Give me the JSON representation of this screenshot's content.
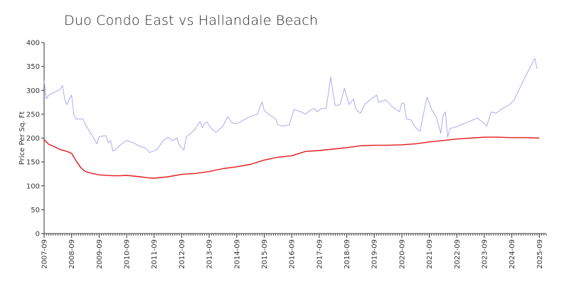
{
  "chart_data": {
    "type": "line",
    "title": "Duo Condo East vs Hallandale Beach",
    "xlabel": "",
    "ylabel": "Price Per Sq. Ft",
    "ylim": [
      0,
      400
    ],
    "yticks": [
      "0",
      "50",
      "100",
      "150",
      "200",
      "250",
      "300",
      "350",
      "400"
    ],
    "xticks": [
      "2007-09",
      "2008-09",
      "2009-09",
      "2010-09",
      "2011-09",
      "2012-09",
      "2013-09",
      "2014-09",
      "2015-09",
      "2016-09",
      "2017-09",
      "2018-09",
      "2019-09",
      "2020-09",
      "2021-09",
      "2022-09",
      "2023-09",
      "2024-09",
      "2025-09"
    ],
    "x_range": [
      "2007-09",
      "2025-12"
    ],
    "grid": false,
    "legend": "none",
    "series": [
      {
        "color": "#aaaaf2",
        "points": [
          [
            "2007-09",
            320
          ],
          [
            "2007-10",
            282
          ],
          [
            "2007-11",
            290
          ],
          [
            "2008-01",
            295
          ],
          [
            "2008-04",
            302
          ],
          [
            "2008-05",
            310
          ],
          [
            "2008-06",
            280
          ],
          [
            "2008-07",
            270
          ],
          [
            "2008-08",
            282
          ],
          [
            "2008-09",
            290
          ],
          [
            "2008-10",
            248
          ],
          [
            "2008-11",
            240
          ],
          [
            "2009-02",
            240
          ],
          [
            "2009-03",
            228
          ],
          [
            "2009-06",
            205
          ],
          [
            "2009-08",
            188
          ],
          [
            "2009-09",
            203
          ],
          [
            "2009-12",
            205
          ],
          [
            "2010-01",
            190
          ],
          [
            "2010-02",
            195
          ],
          [
            "2010-03",
            173
          ],
          [
            "2010-04",
            175
          ],
          [
            "2010-06",
            185
          ],
          [
            "2010-09",
            195
          ],
          [
            "2010-12",
            190
          ],
          [
            "2011-03",
            182
          ],
          [
            "2011-05",
            180
          ],
          [
            "2011-06",
            175
          ],
          [
            "2011-07",
            170
          ],
          [
            "2011-10",
            175
          ],
          [
            "2012-01",
            195
          ],
          [
            "2012-03",
            202
          ],
          [
            "2012-05",
            195
          ],
          [
            "2012-07",
            200
          ],
          [
            "2012-08",
            185
          ],
          [
            "2012-10",
            175
          ],
          [
            "2012-11",
            203
          ],
          [
            "2013-01",
            210
          ],
          [
            "2013-03",
            220
          ],
          [
            "2013-05",
            235
          ],
          [
            "2013-06",
            222
          ],
          [
            "2013-07",
            230
          ],
          [
            "2013-08",
            234
          ],
          [
            "2013-10",
            220
          ],
          [
            "2013-12",
            212
          ],
          [
            "2014-03",
            225
          ],
          [
            "2014-05",
            245
          ],
          [
            "2014-07",
            232
          ],
          [
            "2014-09",
            230
          ],
          [
            "2014-12",
            238
          ],
          [
            "2015-03",
            245
          ],
          [
            "2015-06",
            250
          ],
          [
            "2015-08",
            276
          ],
          [
            "2015-09",
            258
          ],
          [
            "2015-11",
            250
          ],
          [
            "2016-02",
            240
          ],
          [
            "2016-03",
            228
          ],
          [
            "2016-05",
            225
          ],
          [
            "2016-08",
            228
          ],
          [
            "2016-10",
            260
          ],
          [
            "2017-01",
            255
          ],
          [
            "2017-03",
            250
          ],
          [
            "2017-05",
            258
          ],
          [
            "2017-07",
            262
          ],
          [
            "2017-08",
            255
          ],
          [
            "2017-10",
            262
          ],
          [
            "2017-12",
            262
          ],
          [
            "2018-02",
            328
          ],
          [
            "2018-03",
            295
          ],
          [
            "2018-04",
            268
          ],
          [
            "2018-06",
            270
          ],
          [
            "2018-08",
            304
          ],
          [
            "2018-10",
            270
          ],
          [
            "2018-12",
            282
          ],
          [
            "2019-01",
            260
          ],
          [
            "2019-03",
            252
          ],
          [
            "2019-05",
            272
          ],
          [
            "2019-08",
            283
          ],
          [
            "2019-10",
            290
          ],
          [
            "2019-11",
            275
          ],
          [
            "2020-02",
            280
          ],
          [
            "2020-05",
            265
          ],
          [
            "2020-08",
            255
          ],
          [
            "2020-09",
            273
          ],
          [
            "2020-10",
            273
          ],
          [
            "2020-11",
            240
          ],
          [
            "2021-01",
            238
          ],
          [
            "2021-03",
            222
          ],
          [
            "2021-05",
            214
          ],
          [
            "2021-06",
            240
          ],
          [
            "2021-08",
            286
          ],
          [
            "2021-10",
            260
          ],
          [
            "2021-12",
            245
          ],
          [
            "2022-02",
            210
          ],
          [
            "2022-03",
            248
          ],
          [
            "2022-04",
            255
          ],
          [
            "2022-05",
            202
          ],
          [
            "2022-06",
            220
          ],
          [
            "2022-09",
            224
          ],
          [
            "2022-12",
            230
          ],
          [
            "2023-03",
            236
          ],
          [
            "2023-06",
            242
          ],
          [
            "2023-09",
            230
          ],
          [
            "2023-10",
            225
          ],
          [
            "2023-12",
            255
          ],
          [
            "2024-02",
            252
          ],
          [
            "2024-05",
            262
          ],
          [
            "2024-08",
            270
          ],
          [
            "2024-10",
            280
          ],
          [
            "2024-12",
            300
          ],
          [
            "2025-03",
            330
          ],
          [
            "2025-06",
            358
          ],
          [
            "2025-07",
            367
          ],
          [
            "2025-08",
            345
          ]
        ]
      },
      {
        "color": "#e31a1c",
        "points": [
          [
            "2007-09",
            197
          ],
          [
            "2007-11",
            187
          ],
          [
            "2008-01",
            183
          ],
          [
            "2008-04",
            176
          ],
          [
            "2008-07",
            172
          ],
          [
            "2008-09",
            168
          ],
          [
            "2008-11",
            152
          ],
          [
            "2009-01",
            138
          ],
          [
            "2009-03",
            130
          ],
          [
            "2009-06",
            126
          ],
          [
            "2009-09",
            123
          ],
          [
            "2010-03",
            121
          ],
          [
            "2010-06",
            121
          ],
          [
            "2010-09",
            122
          ],
          [
            "2011-03",
            119
          ],
          [
            "2011-06",
            117
          ],
          [
            "2011-09",
            116
          ],
          [
            "2012-03",
            119
          ],
          [
            "2012-09",
            124
          ],
          [
            "2013-03",
            126
          ],
          [
            "2013-09",
            130
          ],
          [
            "2014-03",
            136
          ],
          [
            "2014-09",
            140
          ],
          [
            "2015-03",
            145
          ],
          [
            "2015-09",
            154
          ],
          [
            "2016-03",
            160
          ],
          [
            "2016-09",
            163
          ],
          [
            "2017-03",
            172
          ],
          [
            "2017-09",
            174
          ],
          [
            "2018-03",
            177
          ],
          [
            "2018-09",
            180
          ],
          [
            "2019-03",
            184
          ],
          [
            "2019-09",
            185
          ],
          [
            "2020-03",
            185
          ],
          [
            "2020-09",
            186
          ],
          [
            "2021-03",
            188
          ],
          [
            "2021-09",
            192
          ],
          [
            "2022-03",
            195
          ],
          [
            "2022-09",
            198
          ],
          [
            "2023-03",
            200
          ],
          [
            "2023-09",
            202
          ],
          [
            "2024-03",
            202
          ],
          [
            "2024-09",
            201
          ],
          [
            "2025-03",
            201
          ],
          [
            "2025-09",
            200
          ]
        ]
      }
    ]
  }
}
